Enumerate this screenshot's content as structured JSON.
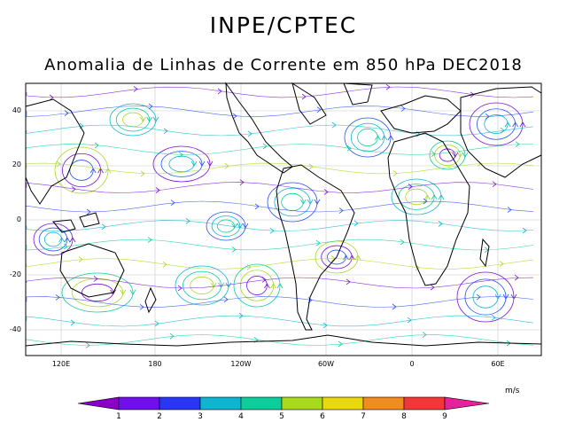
{
  "title": "INPE/CPTEC",
  "subtitle": "Anomalia de Linhas de Corrente em 850 hPa DEC2018",
  "map": {
    "lat_ticks": [
      "40",
      "20",
      "0",
      "-20",
      "-40"
    ],
    "lon_ticks": [
      "120E",
      "180",
      "120W",
      "60W",
      "0",
      "60E"
    ]
  },
  "colorbar": {
    "unit": "m/s",
    "labels": [
      "1",
      "2",
      "3",
      "4",
      "5",
      "6",
      "7",
      "8",
      "9"
    ],
    "colors": [
      "#8a00c8",
      "#7010e8",
      "#2a36f0",
      "#10b4d0",
      "#10cc9c",
      "#a8d820",
      "#e8d810",
      "#f08c20",
      "#f03838",
      "#e8209c"
    ]
  },
  "streamline_colors": [
    "#7a10d8",
    "#2a50f0",
    "#10b4d0",
    "#10cc9c",
    "#a8d820"
  ]
}
